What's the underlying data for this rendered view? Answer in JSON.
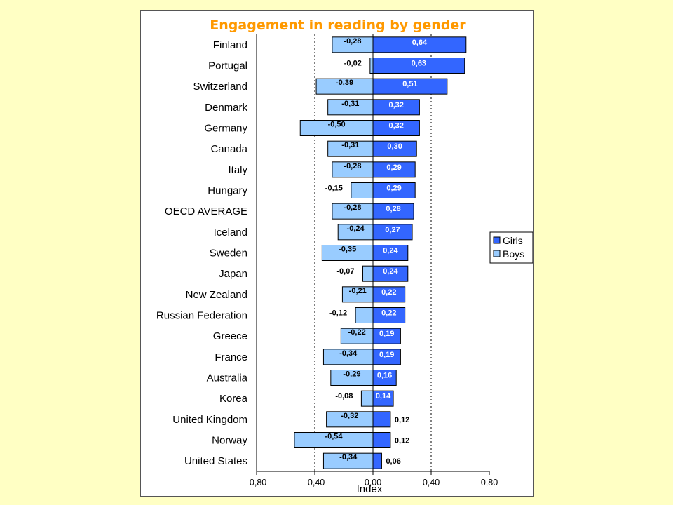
{
  "chart_data": {
    "type": "bar",
    "orientation": "horizontal",
    "stacked_diverging": true,
    "title": "Engagement in reading by gender",
    "xlabel": "Index",
    "xlim": [
      -0.8,
      0.8
    ],
    "xticks": [
      -0.8,
      -0.4,
      0.0,
      0.4,
      0.8
    ],
    "xtick_labels": [
      "-0,80",
      "-0,40",
      "0,00",
      "0,40",
      "0,80"
    ],
    "reference_lines": [
      -0.4,
      0.4
    ],
    "legend_position": "right",
    "categories": [
      "Finland",
      "Portugal",
      "Switzerland",
      "Denmark",
      "Germany",
      "Canada",
      "Italy",
      "Hungary",
      "OECD AVERAGE",
      "Iceland",
      "Sweden",
      "Japan",
      "New Zealand",
      "Russian Federation",
      "Greece",
      "France",
      "Australia",
      "Korea",
      "United Kingdom",
      "Norway",
      "United States"
    ],
    "series": [
      {
        "name": "Girls",
        "color": "#3366FF",
        "values": [
          0.64,
          0.63,
          0.51,
          0.32,
          0.32,
          0.3,
          0.29,
          0.29,
          0.28,
          0.27,
          0.24,
          0.24,
          0.22,
          0.22,
          0.19,
          0.19,
          0.16,
          0.14,
          0.12,
          0.12,
          0.06
        ],
        "labels": [
          "0,64",
          "0,63",
          "0,51",
          "0,32",
          "0,32",
          "0,30",
          "0,29",
          "0,29",
          "0,28",
          "0,27",
          "0,24",
          "0,24",
          "0,22",
          "0,22",
          "0,19",
          "0,19",
          "0,16",
          "0,14",
          "0,12",
          "0,12",
          "0,06"
        ]
      },
      {
        "name": "Boys",
        "color": "#99CCFF",
        "values": [
          -0.28,
          -0.02,
          -0.39,
          -0.31,
          -0.5,
          -0.31,
          -0.28,
          -0.15,
          -0.28,
          -0.24,
          -0.35,
          -0.07,
          -0.21,
          -0.12,
          -0.22,
          -0.34,
          -0.29,
          -0.08,
          -0.32,
          -0.54,
          -0.34
        ],
        "labels": [
          "-0,28",
          "-0,02",
          "-0,39",
          "-0,31",
          "-0,50",
          "-0,31",
          "-0,28",
          "-0,15",
          "-0,28",
          "-0,24",
          "-0,35",
          "-0,07",
          "-0,21",
          "-0,12",
          "-0,22",
          "-0,34",
          "-0,29",
          "-0,08",
          "-0,32",
          "-0,54",
          "-0,34"
        ]
      }
    ]
  }
}
